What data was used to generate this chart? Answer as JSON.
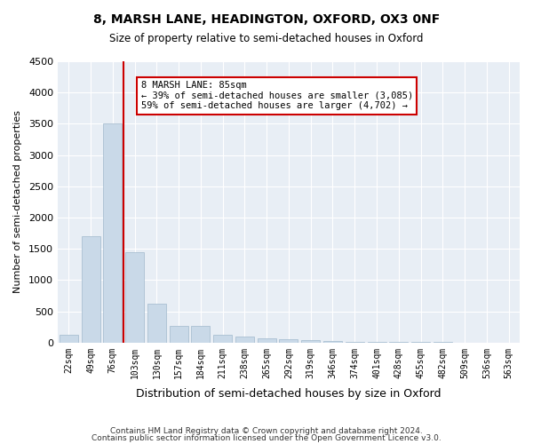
{
  "title1": "8, MARSH LANE, HEADINGTON, OXFORD, OX3 0NF",
  "title2": "Size of property relative to semi-detached houses in Oxford",
  "xlabel": "Distribution of semi-detached houses by size in Oxford",
  "ylabel": "Number of semi-detached properties",
  "categories": [
    "22sqm",
    "49sqm",
    "76sqm",
    "103sqm",
    "130sqm",
    "157sqm",
    "184sqm",
    "211sqm",
    "238sqm",
    "265sqm",
    "292sqm",
    "319sqm",
    "346sqm",
    "374sqm",
    "401sqm",
    "428sqm",
    "455sqm",
    "482sqm",
    "509sqm",
    "536sqm",
    "563sqm"
  ],
  "values": [
    130,
    1700,
    3500,
    1450,
    620,
    270,
    270,
    120,
    90,
    70,
    50,
    40,
    30,
    15,
    10,
    8,
    5,
    4,
    3,
    2,
    2
  ],
  "bar_color": "#c9d9e8",
  "bar_edge_color": "#a0b8cc",
  "vline_x": 2,
  "vline_color": "#cc0000",
  "annotation_text": "8 MARSH LANE: 85sqm\n← 39% of semi-detached houses are smaller (3,085)\n59% of semi-detached houses are larger (4,702) →",
  "annotation_box_color": "#ffffff",
  "annotation_edge_color": "#cc0000",
  "ylim": [
    0,
    4500
  ],
  "yticks": [
    0,
    500,
    1000,
    1500,
    2000,
    2500,
    3000,
    3500,
    4000,
    4500
  ],
  "background_color": "#e8eef5",
  "footer1": "Contains HM Land Registry data © Crown copyright and database right 2024.",
  "footer2": "Contains public sector information licensed under the Open Government Licence v3.0."
}
